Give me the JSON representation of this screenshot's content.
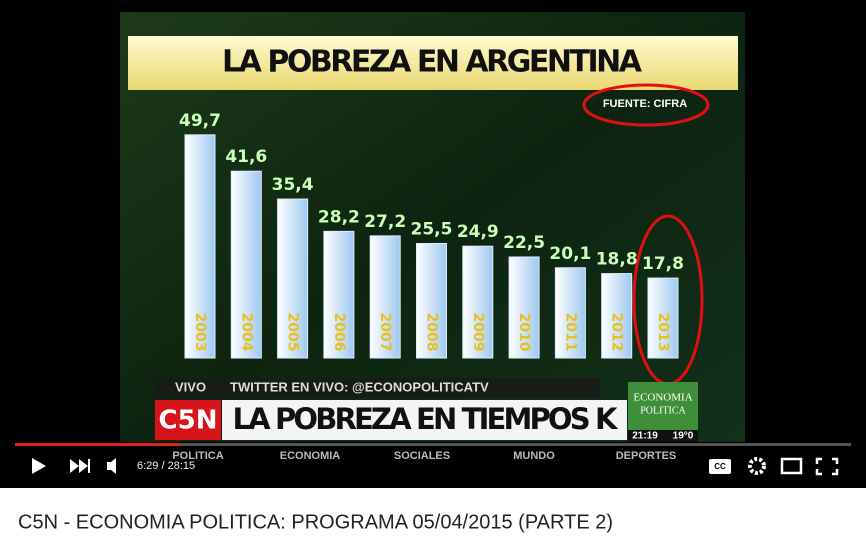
{
  "chart_data": {
    "type": "bar",
    "title": "LA POBREZA EN ARGENTINA",
    "source": "FUENTE: CIFRA",
    "categories": [
      "2003",
      "2004",
      "2005",
      "2006",
      "2007",
      "2008",
      "2009",
      "2010",
      "2011",
      "2012",
      "2013"
    ],
    "values": [
      49.7,
      41.6,
      35.4,
      28.2,
      27.2,
      25.5,
      24.9,
      22.5,
      20.1,
      18.8,
      17.8
    ],
    "value_labels": [
      "49,7",
      "41,6",
      "35,4",
      "28,2",
      "27,2",
      "25,5",
      "24,9",
      "22,5",
      "20,1",
      "18,8",
      "17,8"
    ],
    "color": "#dcefff"
  },
  "overlay": {
    "live": "VIVO",
    "twitter": "TWITTER EN VIVO: @ECONOPOLITICATV",
    "channel": "C5N",
    "headline": "LA POBREZA EN TIEMPOS K",
    "logo": [
      "ECONOMIA",
      "POLITICA"
    ],
    "clock": "21:19",
    "temperature": "19°0",
    "menu": [
      "POLITICA",
      "ECONOMIA",
      "SOCIALES",
      "MUNDO",
      "DEPORTES"
    ]
  },
  "player": {
    "time": "6:29 / 28:15",
    "captions": "CC"
  },
  "page": {
    "title": "C5N - ECONOMIA POLITICA: PROGRAMA 05/04/2015 (PARTE 2)"
  }
}
